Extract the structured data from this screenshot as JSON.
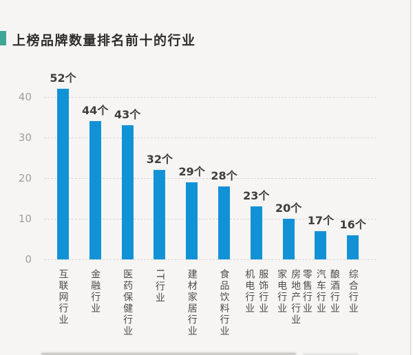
{
  "header": {
    "title": "上榜品牌数量排名前十的行业"
  },
  "colors": {
    "background": "#f6f5f3",
    "accent_teal": "#3fa596",
    "bar_blue": "#1292d6",
    "grid_gray": "#d7d6d3",
    "axis_text_gray": "#9e9e9c",
    "value_label_dark": "#3d3d3b",
    "category_text": "#4b4b49",
    "title_text": "#2d2d2b"
  },
  "chart_data": {
    "type": "bar",
    "title": "上榜品牌数量排名前十的行业",
    "unit": "个",
    "categories": [
      "互联网行业",
      "金融行业",
      "医药保健行业",
      "IT行业",
      "建材家居行业",
      "食品饮料行业",
      "机电行业/服饰行业",
      "家电行业/房地产行业",
      "零售行业/汽车行业/酿酒行业",
      "综合行业"
    ],
    "category_columns": [
      [
        "互联网行业"
      ],
      [
        "金融行业"
      ],
      [
        "医药保健行业"
      ],
      [
        "IT行业"
      ],
      [
        "建材家居行业"
      ],
      [
        "食品饮料行业"
      ],
      [
        "机电行业",
        "服饰行业"
      ],
      [
        "家电行业",
        "房地产行业"
      ],
      [
        "零售行业",
        "汽车行业",
        "酿酒行业"
      ],
      [
        "综合行业"
      ]
    ],
    "values": [
      52,
      44,
      43,
      32,
      29,
      28,
      23,
      20,
      17,
      16
    ],
    "value_labels": [
      "52个",
      "44个",
      "43个",
      "32个",
      "29个",
      "28个",
      "23个",
      "20个",
      "17个",
      "16个"
    ],
    "bars_plotted_at": [
      42,
      34,
      33,
      22,
      19,
      18,
      13,
      10,
      7,
      6
    ],
    "plot_note": "bars are drawn 10 axis-units lower than their printed value labels",
    "yticks": [
      0,
      10,
      20,
      30,
      40
    ],
    "ylim": [
      0,
      44
    ],
    "xlabel": "",
    "ylabel": "",
    "grid": "horizontal dashed",
    "legend": "none"
  }
}
